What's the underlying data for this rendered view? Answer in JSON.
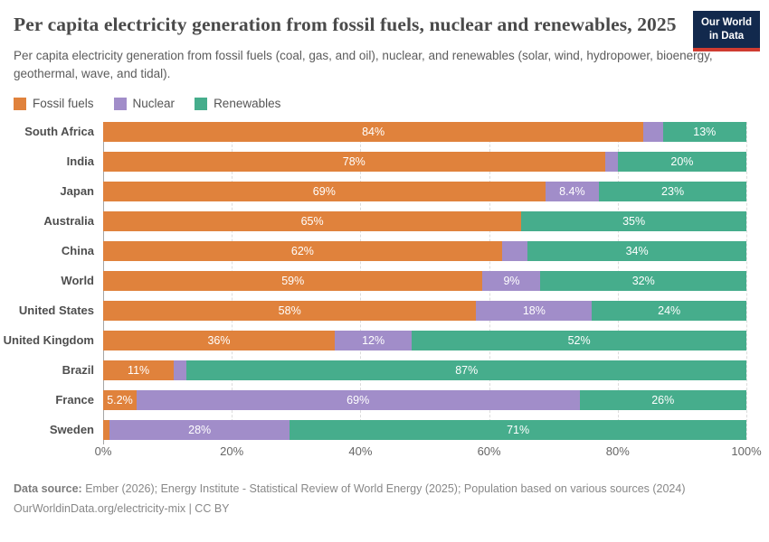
{
  "header": {
    "title": "Per capita electricity generation from fossil fuels, nuclear and renewables, 2025",
    "subtitle": "Per capita electricity generation from fossil fuels (coal, gas, and oil), nuclear, and renewables (solar, wind, hydropower, bioenergy, geothermal, wave, and tidal).",
    "logo": {
      "line1": "Our World",
      "line2": "in Data",
      "bg_color": "#12294d",
      "stripe_color": "#cf3b31"
    }
  },
  "legend": [
    {
      "label": "Fossil fuels",
      "color": "#e0823c"
    },
    {
      "label": "Nuclear",
      "color": "#a18dc9"
    },
    {
      "label": "Renewables",
      "color": "#46ad8c"
    }
  ],
  "chart_data": {
    "type": "bar",
    "orientation": "horizontal",
    "stacked": true,
    "grid": true,
    "legend_position": "top-left",
    "series_names": [
      "Fossil fuels",
      "Nuclear",
      "Renewables"
    ],
    "xlim": [
      0,
      100
    ],
    "x_ticks": [
      {
        "value": 0,
        "label": "0%"
      },
      {
        "value": 20,
        "label": "20%"
      },
      {
        "value": 40,
        "label": "40%"
      },
      {
        "value": 60,
        "label": "60%"
      },
      {
        "value": 80,
        "label": "80%"
      },
      {
        "value": 100,
        "label": "100%"
      }
    ],
    "rows": [
      {
        "country": "South Africa",
        "values": [
          84,
          3,
          13
        ],
        "labels": [
          "84%",
          "",
          "13%"
        ]
      },
      {
        "country": "India",
        "values": [
          78,
          2,
          20
        ],
        "labels": [
          "78%",
          "",
          "20%"
        ]
      },
      {
        "country": "Japan",
        "values": [
          69,
          8.4,
          23
        ],
        "labels": [
          "69%",
          "8.4%",
          "23%"
        ]
      },
      {
        "country": "Australia",
        "values": [
          65,
          0,
          35
        ],
        "labels": [
          "65%",
          "",
          "35%"
        ]
      },
      {
        "country": "China",
        "values": [
          62,
          4,
          34
        ],
        "labels": [
          "62%",
          "",
          "34%"
        ]
      },
      {
        "country": "World",
        "values": [
          59,
          9,
          32
        ],
        "labels": [
          "59%",
          "9%",
          "32%"
        ]
      },
      {
        "country": "United States",
        "values": [
          58,
          18,
          24
        ],
        "labels": [
          "58%",
          "18%",
          "24%"
        ]
      },
      {
        "country": "United Kingdom",
        "values": [
          36,
          12,
          52
        ],
        "labels": [
          "36%",
          "12%",
          "52%"
        ]
      },
      {
        "country": "Brazil",
        "values": [
          11,
          2,
          87
        ],
        "labels": [
          "11%",
          "",
          "87%"
        ]
      },
      {
        "country": "France",
        "values": [
          5.2,
          69,
          26
        ],
        "labels": [
          "5.2%",
          "69%",
          "26%"
        ]
      },
      {
        "country": "Sweden",
        "values": [
          1,
          28,
          71
        ],
        "labels": [
          "",
          "28%",
          "71%"
        ]
      }
    ]
  },
  "footer": {
    "source_label": "Data source:",
    "source_text": " Ember (2026); Energy Institute - Statistical Review of World Energy (2025); Population based on various sources (2024)",
    "link_line": "OurWorldinData.org/electricity-mix | CC BY"
  }
}
